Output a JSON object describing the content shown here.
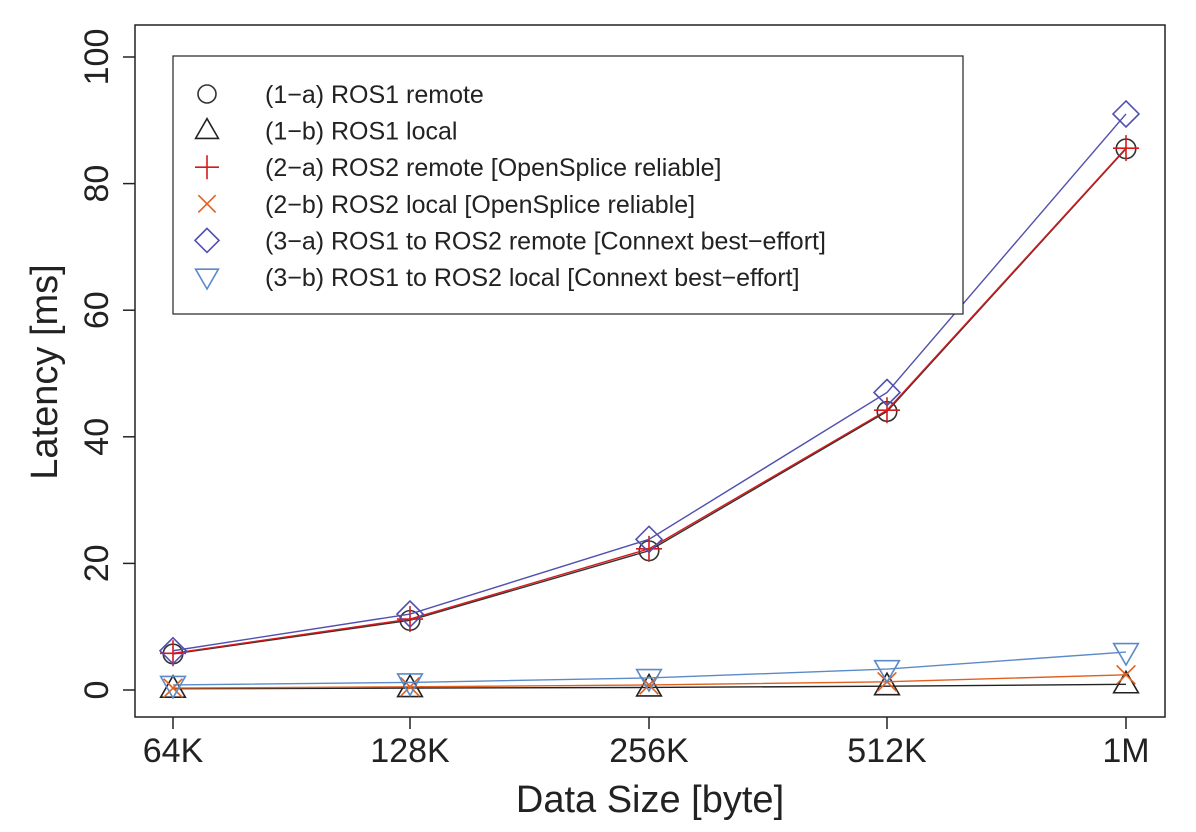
{
  "chart_data": {
    "type": "line",
    "title": "",
    "xlabel": "Data Size [byte]",
    "ylabel": "Latency [ms]",
    "categories": [
      "64K",
      "128K",
      "256K",
      "512K",
      "1M"
    ],
    "ylim": [
      0,
      100
    ],
    "yticks": [
      0,
      20,
      40,
      60,
      80,
      100
    ],
    "grid": false,
    "legend_position": "top-left",
    "series": [
      {
        "name": "(1−a) ROS1 remote",
        "marker": "circle",
        "color": "#333333",
        "values": [
          5.7,
          11.0,
          22.0,
          44.0,
          85.5
        ]
      },
      {
        "name": "(1−b) ROS1 local",
        "marker": "triangle-up",
        "color": "#222222",
        "values": [
          0.2,
          0.3,
          0.4,
          0.6,
          0.9
        ]
      },
      {
        "name": "(2−a) ROS2 remote [OpenSplice reliable]",
        "marker": "plus",
        "color": "#d7191c",
        "values": [
          5.8,
          11.2,
          22.3,
          44.2,
          85.6
        ]
      },
      {
        "name": "(2−b) ROS2 local [OpenSplice reliable]",
        "marker": "x",
        "color": "#e06020",
        "values": [
          0.3,
          0.5,
          0.8,
          1.3,
          2.4
        ]
      },
      {
        "name": "(3−a) ROS1 to ROS2 remote [Connext best−effort]",
        "marker": "diamond",
        "color": "#5050b0",
        "values": [
          6.2,
          12.0,
          23.8,
          47.0,
          91.0
        ]
      },
      {
        "name": "(3−b) ROS1 to ROS2 local [Connext best−effort]",
        "marker": "triangle-down",
        "color": "#5b8ac8",
        "values": [
          0.8,
          1.2,
          1.9,
          3.3,
          6.0
        ]
      }
    ]
  }
}
